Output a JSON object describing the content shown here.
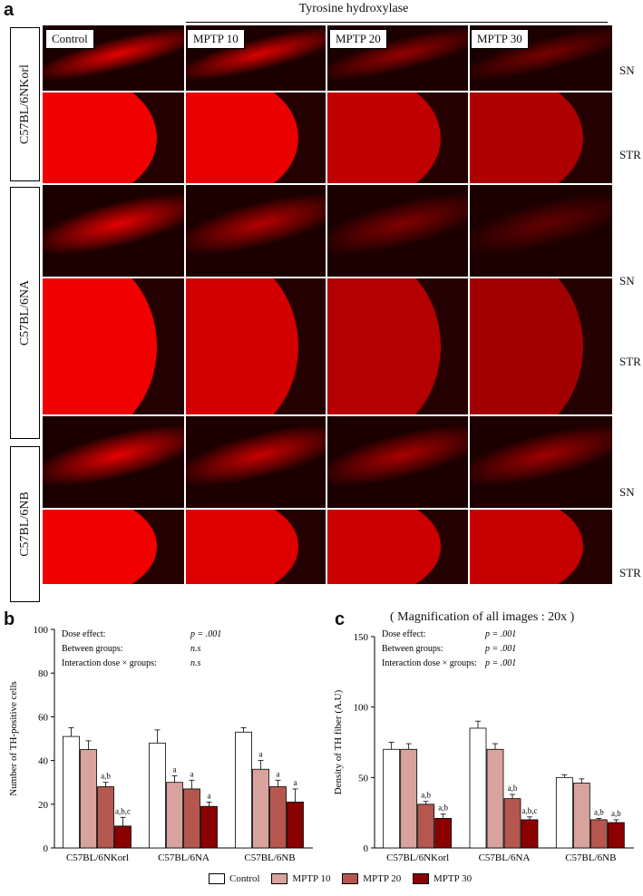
{
  "panel_a": {
    "letter": "a",
    "title": "Tyrosine hydroxylase",
    "columns": [
      "Control",
      "MPTP 10",
      "MPTP 20",
      "MPTP 30"
    ],
    "rows": [
      "C57BL/6NKorl",
      "C57BL/6NA",
      "C57BL/6NB"
    ],
    "regions": [
      "SN",
      "STR"
    ],
    "magnification_note": "( Magnification of all images : 20x )"
  },
  "panel_b": {
    "letter": "b"
  },
  "panel_c": {
    "letter": "c"
  },
  "legend": [
    "Control",
    "MPTP 10",
    "MPTP 20",
    "MPTP 30"
  ],
  "colors": {
    "series": [
      "#ffffff",
      "#d9a39d",
      "#b5574e",
      "#8b0000"
    ],
    "fluorescence": "#e00000"
  },
  "chart_data": [
    {
      "type": "bar",
      "ylabel": "Number of TH-positive cells",
      "ylim": [
        0,
        100
      ],
      "yticks": [
        0,
        20,
        40,
        60,
        80,
        100
      ],
      "categories": [
        "C57BL/6NKorl",
        "C57BL/6NA",
        "C57BL/6NB"
      ],
      "series": [
        {
          "name": "Control",
          "values": [
            51,
            48,
            53
          ],
          "errors": [
            4,
            6,
            2
          ]
        },
        {
          "name": "MPTP 10",
          "values": [
            45,
            30,
            36
          ],
          "errors": [
            4,
            3,
            4
          ]
        },
        {
          "name": "MPTP 20",
          "values": [
            28,
            27,
            28
          ],
          "errors": [
            2,
            4,
            3
          ]
        },
        {
          "name": "MPTP 30",
          "values": [
            10,
            19,
            21
          ],
          "errors": [
            4,
            2,
            6
          ]
        }
      ],
      "annotations": [
        [
          "",
          "",
          "a,b",
          "a,b,c"
        ],
        [
          "",
          "a",
          "a",
          "a"
        ],
        [
          "",
          "a",
          "a",
          "a"
        ]
      ],
      "stats": [
        {
          "label": "Dose effect:",
          "value": "p = .001"
        },
        {
          "label": "Between groups:",
          "value": "n.s"
        },
        {
          "label": "Interaction dose × groups:",
          "value": "n.s"
        }
      ]
    },
    {
      "type": "bar",
      "ylabel": "Density of TH fiber (A.U)",
      "ylim": [
        0,
        150
      ],
      "yticks": [
        0,
        50,
        100,
        150
      ],
      "categories": [
        "C57BL/6NKorl",
        "C57BL/6NA",
        "C57BL/6NB"
      ],
      "series": [
        {
          "name": "Control",
          "values": [
            70,
            85,
            50
          ],
          "errors": [
            5,
            5,
            2
          ]
        },
        {
          "name": "MPTP 10",
          "values": [
            70,
            70,
            46
          ],
          "errors": [
            4,
            4,
            3
          ]
        },
        {
          "name": "MPTP 20",
          "values": [
            31,
            35,
            20
          ],
          "errors": [
            2,
            3,
            1
          ]
        },
        {
          "name": "MPTP 30",
          "values": [
            21,
            20,
            18
          ],
          "errors": [
            3,
            2,
            2
          ]
        }
      ],
      "annotations": [
        [
          "",
          "",
          "a,b",
          "a,b"
        ],
        [
          "",
          "",
          "a,b",
          "a,b,c"
        ],
        [
          "",
          "",
          "a,b",
          "a,b"
        ]
      ],
      "stats": [
        {
          "label": "Dose effect:",
          "value": "p = .001"
        },
        {
          "label": "Between groups:",
          "value": "p = .001"
        },
        {
          "label": "Interaction dose × groups:",
          "value": "p = .001"
        }
      ]
    }
  ]
}
